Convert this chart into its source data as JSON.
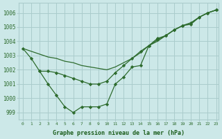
{
  "background_color": "#cce8e8",
  "grid_color": "#aacccc",
  "line_color": "#2d6b2d",
  "marker_color": "#2d6b2d",
  "xlabel": "Graphe pression niveau de la mer (hPa)",
  "xlabel_color": "#1a5c1a",
  "ylabel_ticks": [
    999,
    1000,
    1001,
    1002,
    1003,
    1004,
    1005,
    1006
  ],
  "xticks": [
    0,
    1,
    2,
    3,
    4,
    5,
    6,
    7,
    8,
    9,
    10,
    11,
    12,
    13,
    14,
    15,
    16,
    17,
    18,
    19,
    20,
    21,
    22,
    23
  ],
  "xlim": [
    -0.5,
    23.3
  ],
  "ylim": [
    998.5,
    1006.7
  ],
  "series": [
    {
      "x": [
        0,
        1,
        2,
        3,
        4,
        5,
        6,
        7,
        8,
        9,
        10,
        11,
        12,
        13,
        14,
        15,
        16,
        17,
        18,
        19,
        20,
        21,
        22,
        23
      ],
      "y": [
        1003.5,
        1002.8,
        1001.9,
        1001.0,
        1000.2,
        999.4,
        999.0,
        999.4,
        999.4,
        999.4,
        999.6,
        1001.0,
        1001.5,
        1002.2,
        1002.3,
        1003.7,
        1004.2,
        1004.4,
        1004.8,
        1005.1,
        1005.2,
        1005.7,
        1006.0,
        1006.2
      ],
      "has_markers": true
    },
    {
      "x": [
        0,
        1,
        2,
        3,
        4,
        5,
        6,
        7,
        8,
        9,
        10,
        11,
        12,
        13,
        14,
        15,
        16,
        17,
        18,
        19,
        20,
        21,
        22,
        23
      ],
      "y": [
        1003.5,
        1003.3,
        1003.1,
        1002.9,
        1002.8,
        1002.6,
        1002.5,
        1002.3,
        1002.2,
        1002.1,
        1002.0,
        1002.2,
        1002.5,
        1002.8,
        1003.2,
        1003.7,
        1004.0,
        1004.4,
        1004.8,
        1005.1,
        1005.3,
        1005.7,
        1006.0,
        1006.2
      ],
      "has_markers": false
    },
    {
      "x": [
        2,
        3,
        4,
        5,
        6,
        7,
        8,
        9,
        10,
        11,
        12,
        13,
        14,
        15,
        16,
        17,
        18,
        19,
        20,
        21,
        22,
        23
      ],
      "y": [
        1001.9,
        1001.9,
        1001.8,
        1001.6,
        1001.4,
        1001.2,
        1001.0,
        1001.0,
        1001.2,
        1001.8,
        1002.3,
        1002.8,
        1003.3,
        1003.7,
        1004.1,
        1004.4,
        1004.8,
        1005.1,
        1005.3,
        1005.7,
        1006.0,
        1006.2
      ],
      "has_markers": true
    }
  ]
}
